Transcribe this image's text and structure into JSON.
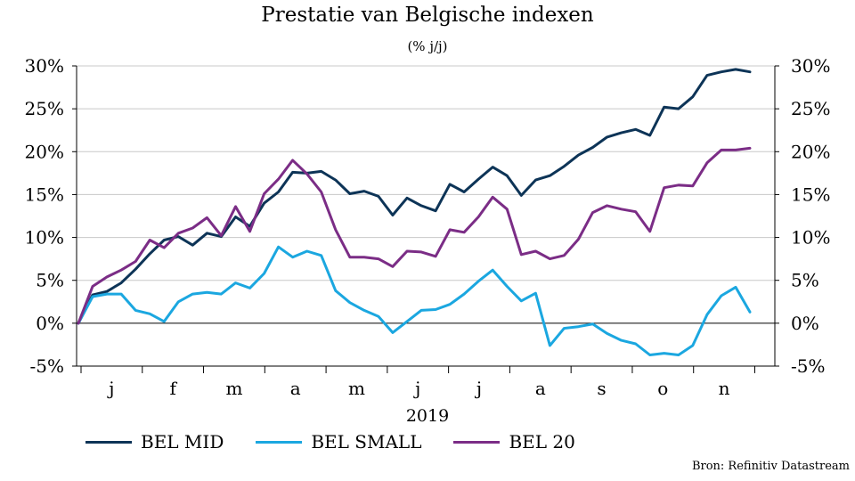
{
  "chart_data": {
    "type": "line",
    "title": "Prestatie van Belgische indexen",
    "subtitle": "(% j/j)",
    "xlabel": "2019",
    "ylim": [
      -5,
      30
    ],
    "yticks": [
      "-5%",
      "0%",
      "5%",
      "10%",
      "15%",
      "20%",
      "25%",
      "30%"
    ],
    "months": [
      "j",
      "f",
      "m",
      "a",
      "m",
      "j",
      "j",
      "a",
      "s",
      "o",
      "n"
    ],
    "source": "Bron: Refinitiv Datastream",
    "legend_position": "bottom",
    "series": [
      {
        "name": "BEL MID",
        "color": "#0d3457",
        "values": [
          0,
          3.3,
          3.7,
          4.7,
          6.3,
          8.1,
          9.7,
          10.1,
          9.1,
          10.5,
          10.1,
          12.4,
          11.3,
          14.0,
          15.3,
          17.6,
          17.5,
          17.7,
          16.7,
          15.1,
          15.4,
          14.8,
          12.6,
          14.6,
          13.7,
          13.1,
          16.2,
          15.3,
          16.8,
          18.2,
          17.2,
          14.9,
          16.7,
          17.2,
          18.3,
          19.6,
          20.5,
          21.7,
          22.2,
          22.6,
          21.9,
          25.2,
          25.0,
          26.4,
          28.9,
          29.3,
          29.6,
          29.3
        ]
      },
      {
        "name": "BEL SMALL",
        "color": "#1ba7e0",
        "values": [
          0,
          3.1,
          3.4,
          3.4,
          1.5,
          1.1,
          0.2,
          2.5,
          3.4,
          3.6,
          3.4,
          4.7,
          4.1,
          5.8,
          8.9,
          7.7,
          8.4,
          7.9,
          3.8,
          2.4,
          1.5,
          0.8,
          -1.1,
          0.2,
          1.5,
          1.6,
          2.2,
          3.4,
          4.9,
          6.2,
          4.3,
          2.6,
          3.5,
          -2.6,
          -0.6,
          -0.4,
          -0.1,
          -1.2,
          -2.0,
          -2.4,
          -3.7,
          -3.5,
          -3.7,
          -2.6,
          1.0,
          3.2,
          4.2,
          1.3
        ]
      },
      {
        "name": "BEL 20",
        "color": "#7b2d86",
        "values": [
          0,
          4.3,
          5.4,
          6.2,
          7.2,
          9.7,
          8.8,
          10.5,
          11.1,
          12.3,
          10.2,
          13.6,
          10.7,
          15.1,
          16.8,
          19.0,
          17.4,
          15.3,
          10.9,
          7.7,
          7.7,
          7.5,
          6.6,
          8.4,
          8.3,
          7.8,
          10.9,
          10.6,
          12.4,
          14.7,
          13.3,
          8.0,
          8.4,
          7.5,
          7.9,
          9.8,
          12.9,
          13.7,
          13.3,
          13.0,
          10.7,
          15.8,
          16.1,
          16.0,
          18.7,
          20.2,
          20.2,
          20.4
        ]
      }
    ]
  }
}
